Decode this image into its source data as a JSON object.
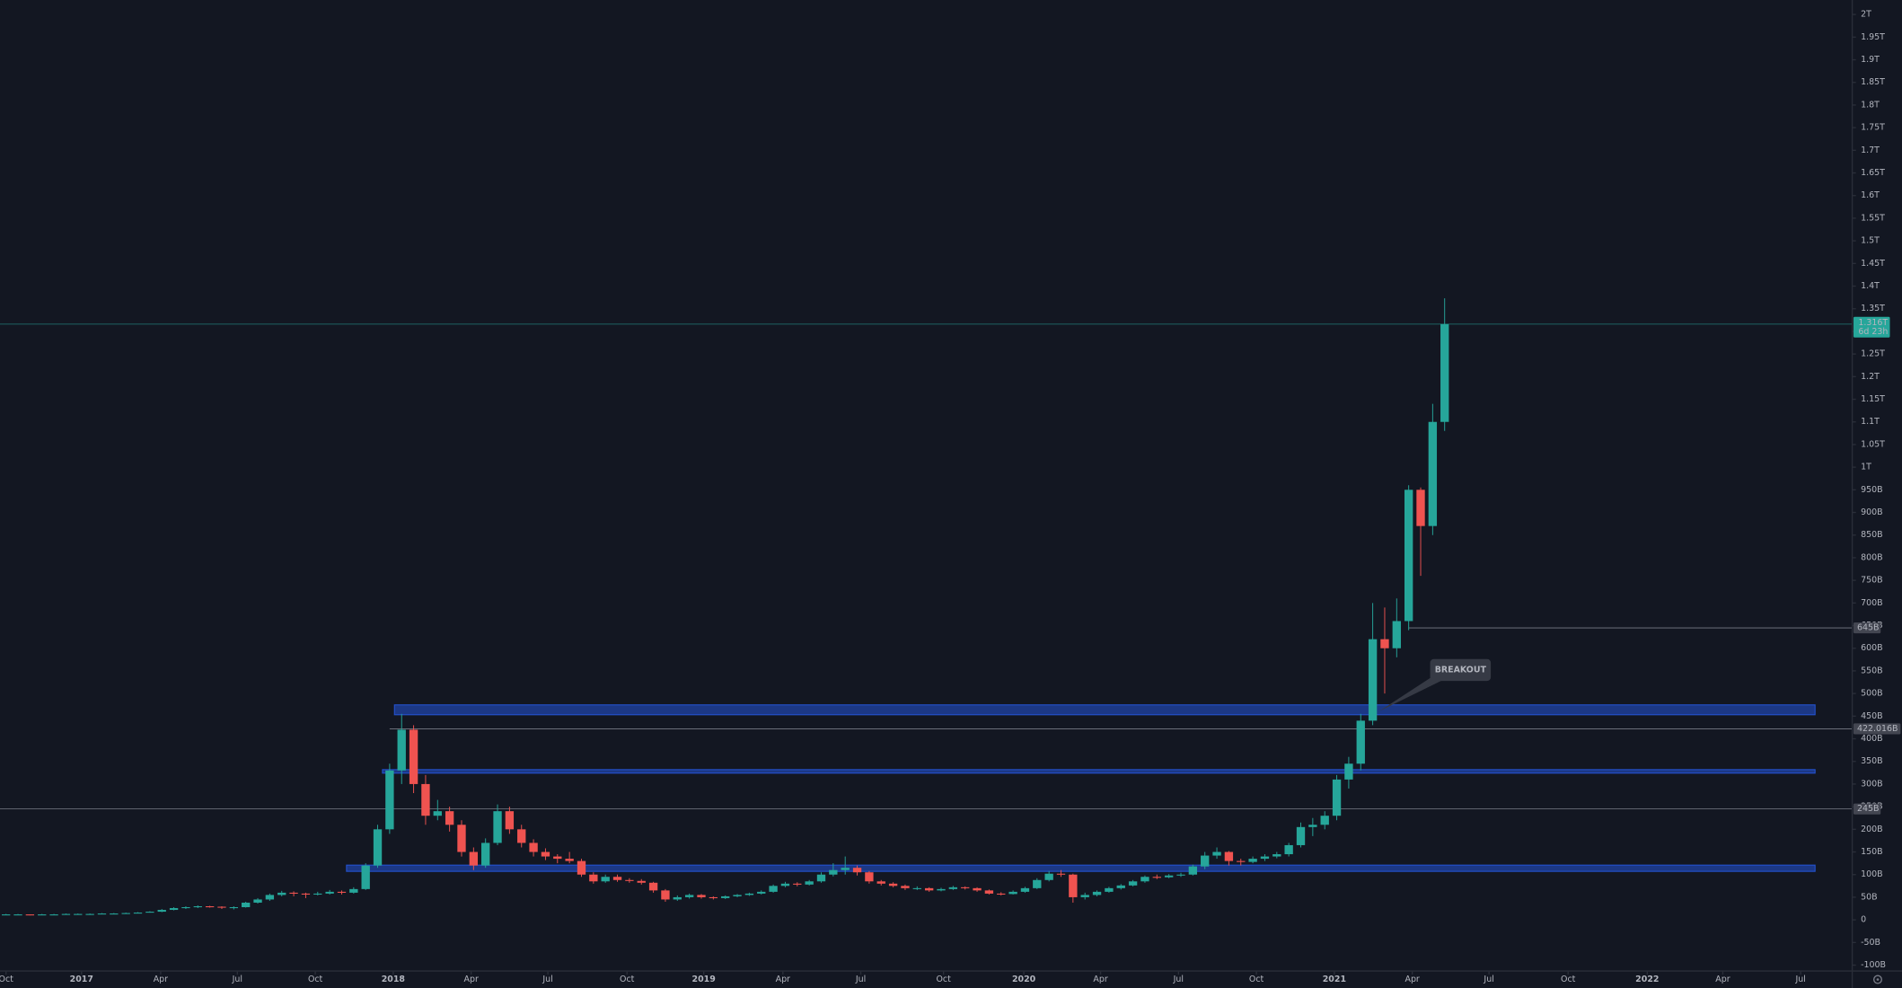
{
  "chart_data": {
    "type": "candlestick",
    "colors": {
      "up": "#26a69a",
      "down": "#ef5350",
      "zone": "#2962ff"
    },
    "grid": false,
    "xlim": [
      -0.5,
      154
    ],
    "xticks": [
      {
        "value": 0,
        "label": "Oct"
      },
      {
        "value": 6.3,
        "label": "2017"
      },
      {
        "value": 12.9,
        "label": "Apr"
      },
      {
        "value": 19.3,
        "label": "Jul"
      },
      {
        "value": 25.8,
        "label": "Oct"
      },
      {
        "value": 32.3,
        "label": "2018"
      },
      {
        "value": 38.8,
        "label": "Apr"
      },
      {
        "value": 45.2,
        "label": "Jul"
      },
      {
        "value": 51.8,
        "label": "Oct"
      },
      {
        "value": 58.2,
        "label": "2019"
      },
      {
        "value": 64.8,
        "label": "Apr"
      },
      {
        "value": 71.3,
        "label": "Jul"
      },
      {
        "value": 78.2,
        "label": "Oct"
      },
      {
        "value": 84.9,
        "label": "2020"
      },
      {
        "value": 91.3,
        "label": "Apr"
      },
      {
        "value": 97.8,
        "label": "Jul"
      },
      {
        "value": 104.3,
        "label": "Oct"
      },
      {
        "value": 110.8,
        "label": "2021"
      },
      {
        "value": 117.3,
        "label": "Apr"
      },
      {
        "value": 123.7,
        "label": "Jul"
      },
      {
        "value": 130.3,
        "label": "Oct"
      },
      {
        "value": 136.9,
        "label": "2022"
      },
      {
        "value": 143.2,
        "label": "Apr"
      },
      {
        "value": 149.7,
        "label": "Jul"
      }
    ],
    "ylim": [
      -113,
      2032
    ],
    "yticks": [
      {
        "value": -100,
        "label": "-100B"
      },
      {
        "value": -50,
        "label": "-50B"
      },
      0,
      {
        "value": 50,
        "label": "50B"
      },
      {
        "value": 100,
        "label": "100B"
      },
      {
        "value": 150,
        "label": "150B"
      },
      {
        "value": 200,
        "label": "200B"
      },
      {
        "value": 250,
        "label": "250B"
      },
      {
        "value": 300,
        "label": "300B"
      },
      {
        "value": 350,
        "label": "350B"
      },
      {
        "value": 400,
        "label": "400B"
      },
      {
        "value": 450,
        "label": "450B"
      },
      {
        "value": 500,
        "label": "500B"
      },
      {
        "value": 550,
        "label": "550B"
      },
      {
        "value": 600,
        "label": "600B"
      },
      {
        "value": 650,
        "label": "650B"
      },
      {
        "value": 700,
        "label": "700B"
      },
      {
        "value": 750,
        "label": "750B"
      },
      {
        "value": 800,
        "label": "800B"
      },
      {
        "value": 850,
        "label": "850B"
      },
      {
        "value": 900,
        "label": "900B"
      },
      {
        "value": 950,
        "label": "950B"
      },
      {
        "value": 1000,
        "label": "1T"
      },
      {
        "value": 1050,
        "label": "1.05T"
      },
      {
        "value": 1100,
        "label": "1.1T"
      },
      {
        "value": 1150,
        "label": "1.15T"
      },
      {
        "value": 1200,
        "label": "1.2T"
      },
      {
        "value": 1250,
        "label": "1.25T"
      },
      {
        "value": 1300,
        "label": "1.3T"
      },
      {
        "value": 1350,
        "label": "1.35T"
      },
      {
        "value": 1400,
        "label": "1.4T"
      },
      {
        "value": 1450,
        "label": "1.45T"
      },
      {
        "value": 1500,
        "label": "1.5T"
      },
      {
        "value": 1550,
        "label": "1.55T"
      },
      {
        "value": 1600,
        "label": "1.6T"
      },
      {
        "value": 1650,
        "label": "1.65T"
      },
      {
        "value": 1700,
        "label": "1.7T"
      },
      {
        "value": 1750,
        "label": "1.75T"
      },
      {
        "value": 1800,
        "label": "1.8T"
      },
      {
        "value": 1850,
        "label": "1.85T"
      },
      {
        "value": 1900,
        "label": "1.9T"
      },
      {
        "value": 1950,
        "label": "1.95T"
      },
      {
        "value": 2000,
        "label": "2T"
      }
    ],
    "candles": [
      [
        12,
        13,
        11,
        12
      ],
      [
        12,
        13,
        11,
        12
      ],
      [
        12,
        12,
        10,
        11
      ],
      [
        11,
        13,
        11,
        12
      ],
      [
        12,
        13,
        11,
        12
      ],
      [
        12,
        14,
        12,
        13
      ],
      [
        13,
        14,
        12,
        13
      ],
      [
        13,
        14,
        12,
        13
      ],
      [
        13,
        15,
        13,
        14
      ],
      [
        14,
        15,
        13,
        14
      ],
      [
        14,
        16,
        14,
        15
      ],
      [
        15,
        17,
        15,
        16
      ],
      [
        16,
        19,
        16,
        18
      ],
      [
        18,
        24,
        17,
        22
      ],
      [
        22,
        28,
        21,
        26
      ],
      [
        26,
        30,
        24,
        28
      ],
      [
        28,
        32,
        26,
        30
      ],
      [
        30,
        31,
        27,
        29
      ],
      [
        29,
        30,
        24,
        27
      ],
      [
        27,
        30,
        23,
        28
      ],
      [
        28,
        40,
        27,
        38
      ],
      [
        38,
        48,
        36,
        45
      ],
      [
        45,
        58,
        42,
        55
      ],
      [
        55,
        64,
        52,
        60
      ],
      [
        60,
        63,
        52,
        58
      ],
      [
        58,
        60,
        48,
        56
      ],
      [
        56,
        62,
        54,
        58
      ],
      [
        58,
        66,
        56,
        62
      ],
      [
        62,
        65,
        56,
        60
      ],
      [
        60,
        72,
        58,
        68
      ],
      [
        68,
        125,
        66,
        120
      ],
      [
        120,
        210,
        115,
        200
      ],
      [
        200,
        345,
        190,
        330
      ],
      [
        330,
        455,
        300,
        420
      ],
      [
        420,
        430,
        280,
        300
      ],
      [
        300,
        320,
        210,
        230
      ],
      [
        230,
        265,
        220,
        240
      ],
      [
        240,
        250,
        195,
        210
      ],
      [
        210,
        220,
        140,
        150
      ],
      [
        150,
        160,
        110,
        120
      ],
      [
        120,
        180,
        115,
        170
      ],
      [
        170,
        255,
        165,
        240
      ],
      [
        240,
        250,
        190,
        200
      ],
      [
        200,
        210,
        160,
        170
      ],
      [
        170,
        178,
        140,
        150
      ],
      [
        150,
        158,
        132,
        140
      ],
      [
        140,
        145,
        125,
        135
      ],
      [
        135,
        150,
        125,
        130
      ],
      [
        130,
        135,
        95,
        100
      ],
      [
        100,
        105,
        80,
        85
      ],
      [
        85,
        100,
        82,
        95
      ],
      [
        95,
        100,
        84,
        88
      ],
      [
        88,
        92,
        82,
        86
      ],
      [
        86,
        90,
        78,
        82
      ],
      [
        82,
        84,
        60,
        65
      ],
      [
        65,
        68,
        40,
        45
      ],
      [
        45,
        54,
        42,
        50
      ],
      [
        50,
        58,
        47,
        55
      ],
      [
        55,
        57,
        47,
        50
      ],
      [
        50,
        52,
        45,
        48
      ],
      [
        48,
        54,
        46,
        52
      ],
      [
        52,
        57,
        50,
        55
      ],
      [
        55,
        60,
        53,
        58
      ],
      [
        58,
        65,
        56,
        62
      ],
      [
        62,
        78,
        60,
        75
      ],
      [
        75,
        84,
        72,
        80
      ],
      [
        80,
        83,
        74,
        78
      ],
      [
        78,
        88,
        76,
        85
      ],
      [
        85,
        105,
        82,
        100
      ],
      [
        100,
        125,
        96,
        110
      ],
      [
        110,
        140,
        100,
        115
      ],
      [
        115,
        120,
        98,
        105
      ],
      [
        105,
        108,
        80,
        85
      ],
      [
        85,
        88,
        76,
        80
      ],
      [
        80,
        83,
        72,
        75
      ],
      [
        75,
        78,
        66,
        70
      ],
      [
        70,
        74,
        66,
        70
      ],
      [
        70,
        72,
        62,
        65
      ],
      [
        65,
        71,
        63,
        68
      ],
      [
        68,
        75,
        66,
        72
      ],
      [
        72,
        74,
        67,
        70
      ],
      [
        70,
        72,
        62,
        65
      ],
      [
        65,
        67,
        56,
        58
      ],
      [
        58,
        61,
        54,
        57
      ],
      [
        57,
        65,
        56,
        62
      ],
      [
        62,
        73,
        60,
        70
      ],
      [
        70,
        92,
        68,
        88
      ],
      [
        88,
        108,
        85,
        102
      ],
      [
        102,
        110,
        95,
        100
      ],
      [
        100,
        102,
        38,
        50
      ],
      [
        50,
        60,
        45,
        55
      ],
      [
        55,
        65,
        52,
        62
      ],
      [
        62,
        73,
        60,
        70
      ],
      [
        70,
        79,
        67,
        76
      ],
      [
        76,
        88,
        74,
        85
      ],
      [
        85,
        98,
        82,
        95
      ],
      [
        95,
        100,
        90,
        94
      ],
      [
        94,
        101,
        92,
        98
      ],
      [
        98,
        104,
        95,
        100
      ],
      [
        100,
        122,
        98,
        118
      ],
      [
        118,
        150,
        112,
        142
      ],
      [
        142,
        160,
        135,
        150
      ],
      [
        150,
        152,
        120,
        130
      ],
      [
        130,
        135,
        120,
        128
      ],
      [
        128,
        140,
        125,
        135
      ],
      [
        135,
        145,
        130,
        140
      ],
      [
        140,
        150,
        136,
        145
      ],
      [
        145,
        170,
        140,
        165
      ],
      [
        165,
        215,
        160,
        205
      ],
      [
        205,
        225,
        185,
        210
      ],
      [
        210,
        240,
        200,
        230
      ],
      [
        230,
        320,
        220,
        310
      ],
      [
        310,
        360,
        290,
        345
      ],
      [
        345,
        455,
        330,
        440
      ],
      [
        440,
        700,
        430,
        620
      ],
      [
        620,
        690,
        500,
        600
      ],
      [
        600,
        710,
        580,
        660
      ],
      [
        660,
        960,
        640,
        950
      ],
      [
        950,
        955,
        760,
        870
      ],
      [
        870,
        1140,
        850,
        1100
      ],
      [
        1100,
        1373,
        1080,
        1316
      ]
    ],
    "zones": [
      {
        "from": 453,
        "to": 475,
        "start": 32.4,
        "end": 150.9
      },
      {
        "from": 324,
        "to": 332,
        "start": 31.4,
        "end": 150.9
      },
      {
        "from": 107,
        "to": 121,
        "start": 28.4,
        "end": 150.9
      }
    ],
    "price_lines": [
      {
        "value": 645,
        "label": "645B",
        "start": 117
      },
      {
        "value": 422.016,
        "label": "422.016B",
        "start": 32
      },
      {
        "value": 245,
        "label": "245B",
        "start": -0.5
      }
    ],
    "last_price": {
      "value": 1316,
      "label": "1.316T",
      "countdown": "6d 23h"
    },
    "annotations": [
      {
        "text": "BREAKOUT"
      }
    ]
  }
}
